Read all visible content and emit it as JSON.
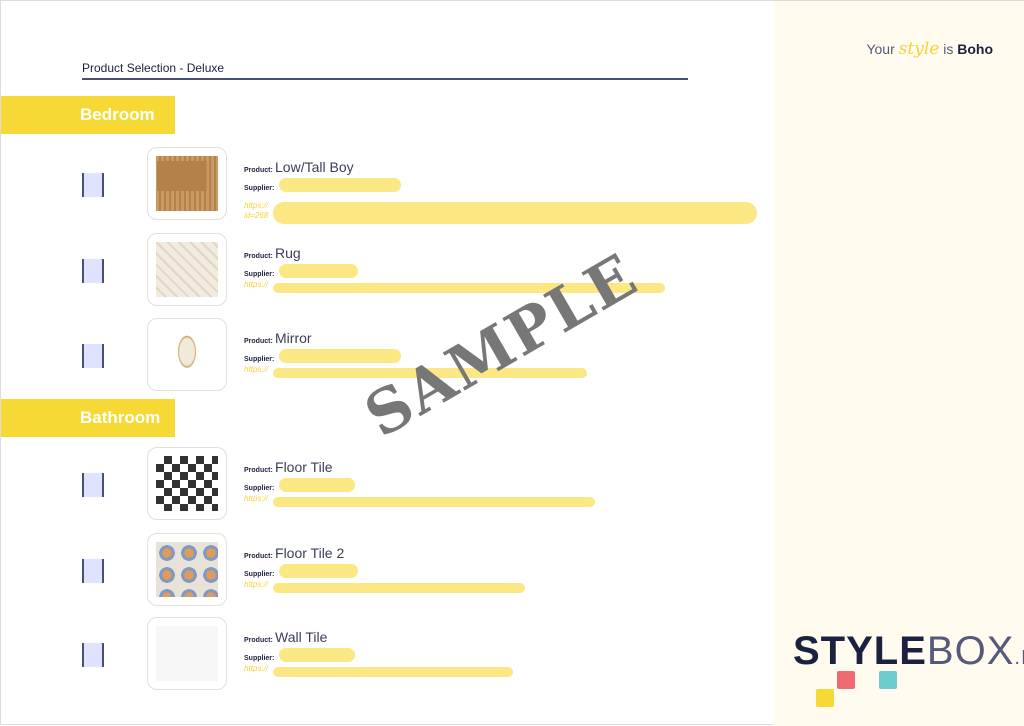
{
  "header": {
    "title": "Product Selection - Deluxe",
    "tagline": {
      "prefix": "Your",
      "style": "style",
      "mid": "is",
      "bold": "Boho"
    }
  },
  "labels": {
    "product": "Product:",
    "supplier": "Supplier:",
    "url": "https://"
  },
  "sections": [
    {
      "title": "Bedroom",
      "items": [
        {
          "name": "Low/Tall Boy",
          "url_extra": "id=268"
        },
        {
          "name": "Rug"
        },
        {
          "name": "Mirror"
        }
      ]
    },
    {
      "title": "Bathroom",
      "items": [
        {
          "name": "Floor Tile"
        },
        {
          "name": "Floor Tile 2"
        },
        {
          "name": "Wall Tile"
        }
      ]
    }
  ],
  "watermark": "SAMPLE",
  "logo": {
    "bold": "STYLE",
    "light": "BOX",
    "suffix": ".ID"
  },
  "colors": {
    "accent": "#f7d935",
    "navy": "#1d2140",
    "highlight": "#fbe784",
    "pink": "#ee6b73",
    "teal": "#6ccbcc"
  }
}
